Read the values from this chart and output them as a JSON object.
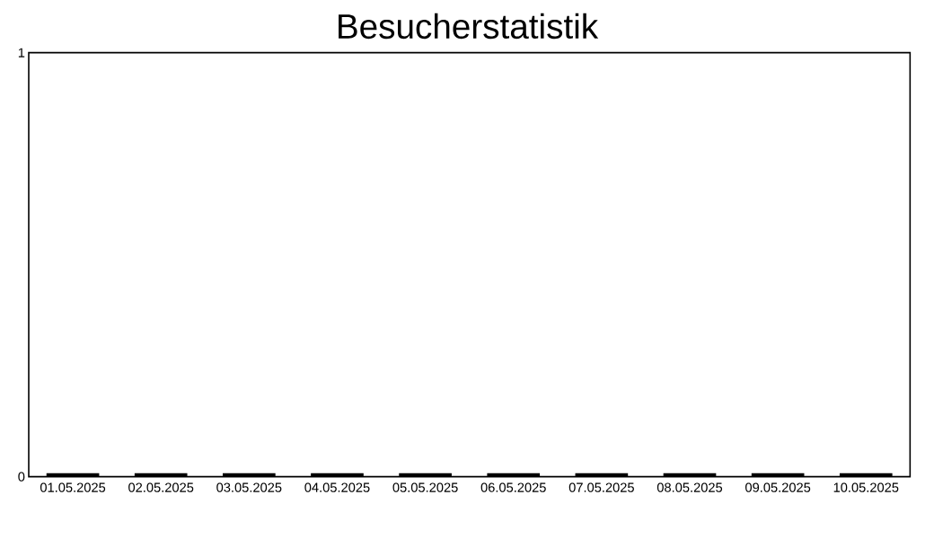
{
  "chart_data": {
    "type": "bar",
    "title": "Besucherstatistik",
    "categories": [
      "01.05.2025",
      "02.05.2025",
      "03.05.2025",
      "04.05.2025",
      "05.05.2025",
      "06.05.2025",
      "07.05.2025",
      "08.05.2025",
      "09.05.2025",
      "10.05.2025"
    ],
    "values": [
      0,
      0,
      0,
      0,
      0,
      0,
      0,
      0,
      0,
      0
    ],
    "color": "#000000",
    "ylim": [
      0,
      1
    ],
    "yticks": [
      0,
      1
    ]
  }
}
